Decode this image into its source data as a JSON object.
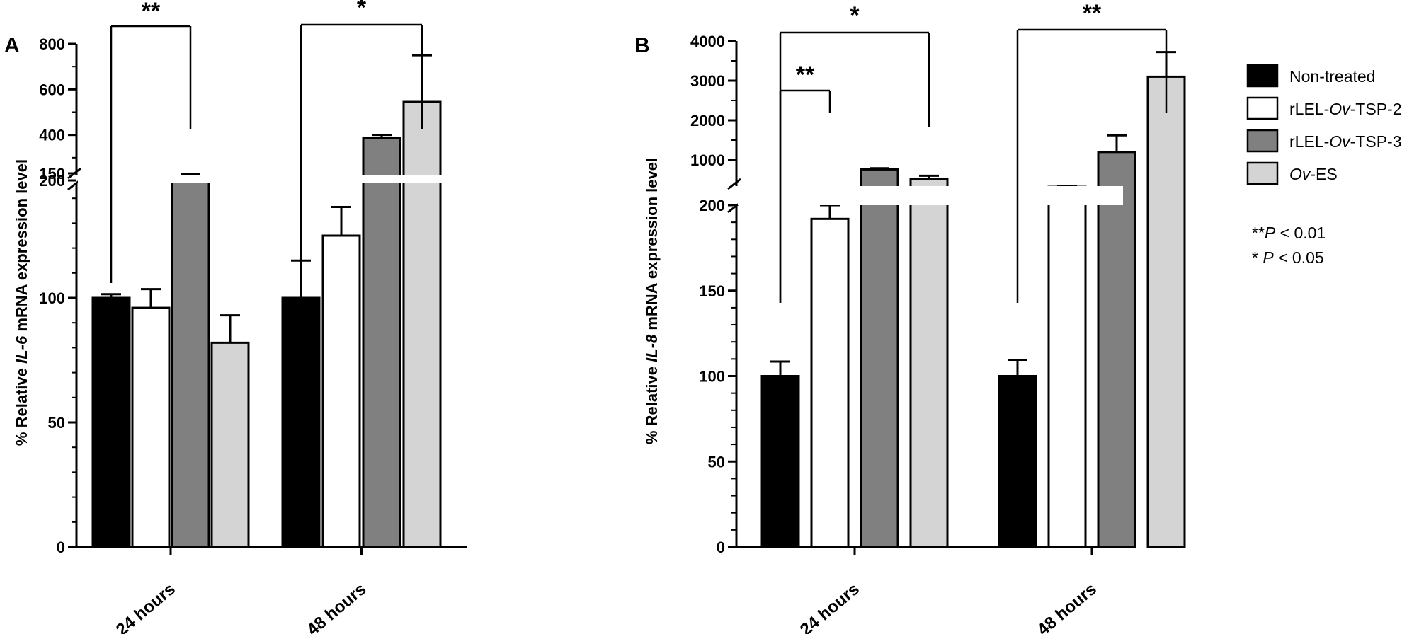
{
  "chart_data": [
    {
      "panel": "A",
      "type": "bar",
      "ylabel": {
        "pre": "% Relative ",
        "gene": "IL-6",
        "post": " mRNA expression level"
      },
      "categories": [
        "24 hours",
        "48 hours"
      ],
      "series": [
        {
          "name": "Non-treated",
          "values": [
            100,
            100
          ],
          "errors": [
            1.5,
            15
          ]
        },
        {
          "name": "rLEL-Ov-TSP-2",
          "values": [
            96,
            125
          ],
          "errors": [
            7.5,
            11.5
          ]
        },
        {
          "name": "rLEL-Ov-TSP-3",
          "values": [
            210,
            385
          ],
          "errors": [
            18,
            15
          ]
        },
        {
          "name": "Ov-ES",
          "values": [
            82,
            545
          ],
          "errors": [
            11,
            205
          ]
        }
      ],
      "axis_break": {
        "lower_max": 150,
        "upper_min": 200,
        "upper_max": 800
      },
      "yticks_lower": [
        "0",
        "50",
        "100",
        "150"
      ],
      "yticks_upper": [
        "200",
        "400",
        "600",
        "800"
      ],
      "significance": [
        {
          "label": "**",
          "category": 0,
          "from_series": 0,
          "to_series": 2
        },
        {
          "label": "*",
          "category": 1,
          "from_series": 0,
          "to_series": 3
        }
      ]
    },
    {
      "panel": "B",
      "type": "bar",
      "ylabel": {
        "pre": "% Relative ",
        "gene": "IL-8",
        "post": " mRNA expression level"
      },
      "categories": [
        "24 hours",
        "48 hours"
      ],
      "series": [
        {
          "name": "Non-treated",
          "values": [
            100,
            100
          ],
          "errors": [
            8.5,
            9.5
          ]
        },
        {
          "name": "rLEL-Ov-TSP-2",
          "values": [
            192,
            320
          ],
          "errors": [
            8,
            10
          ]
        },
        {
          "name": "rLEL-Ov-TSP-3",
          "values": [
            760,
            1200
          ],
          "errors": [
            30,
            420
          ]
        },
        {
          "name": "Ov-ES",
          "values": [
            520,
            3100
          ],
          "errors": [
            80,
            620
          ]
        }
      ],
      "axis_break": {
        "lower_max": 200,
        "upper_min": 200,
        "upper_max": 4000
      },
      "yticks_lower": [
        "0",
        "50",
        "100",
        "150",
        "200"
      ],
      "yticks_upper": [
        "1000",
        "2000",
        "3000",
        "4000"
      ],
      "significance": [
        {
          "label": "**",
          "category": 0,
          "from_series": 0,
          "to_series": 1
        },
        {
          "label": "*",
          "category": 0,
          "from_series": 0,
          "to_series": 3
        },
        {
          "label": "**",
          "category": 1,
          "from_series": 0,
          "to_series": 3
        }
      ]
    }
  ],
  "legend": {
    "items": [
      {
        "pre": "Non-treated",
        "ital": "",
        "post": "",
        "color": "#000000"
      },
      {
        "pre": "rLEL-",
        "ital": "Ov",
        "post": "-TSP-2",
        "color": "#ffffff"
      },
      {
        "pre": "rLEL-",
        "ital": "Ov",
        "post": "-TSP-3",
        "color": "#808080"
      },
      {
        "pre": "",
        "ital": "Ov",
        "post": "-ES",
        "color": "#d4d4d4"
      }
    ],
    "placement": "right"
  },
  "significance_key": [
    {
      "stars": "**",
      "p": "P",
      "rest": " < 0.01"
    },
    {
      "stars": "* ",
      "p": "P",
      "rest": " < 0.05"
    }
  ],
  "colors": {
    "Non-treated": "#000000",
    "rLEL-Ov-TSP-2": "#ffffff",
    "rLEL-Ov-TSP-3": "#808080",
    "Ov-ES": "#d4d4d4"
  }
}
